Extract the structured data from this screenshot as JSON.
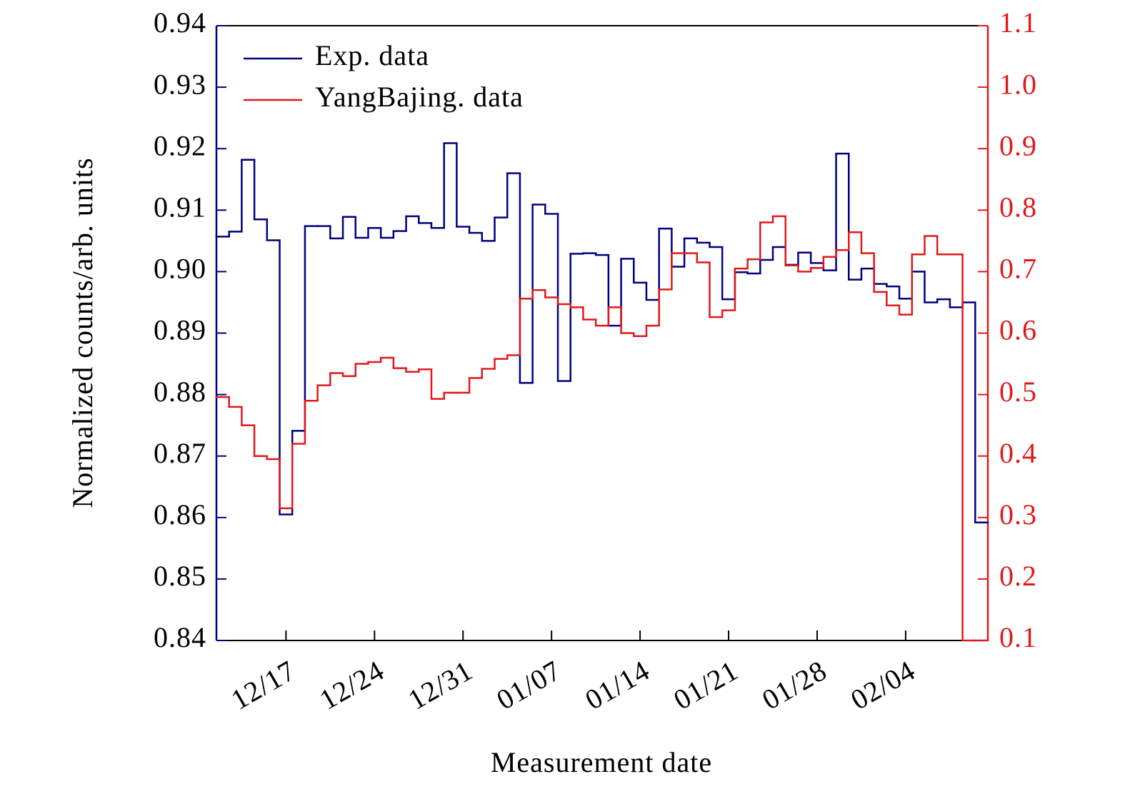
{
  "chart_data": {
    "type": "step",
    "xlabel": "Measurement date",
    "ylabel": "Normalized counts/arb. units",
    "categories": [
      null,
      null,
      null,
      null,
      null,
      "12/17",
      null,
      null,
      null,
      null,
      null,
      null,
      "12/24",
      null,
      null,
      null,
      null,
      null,
      null,
      "12/31",
      null,
      null,
      null,
      null,
      null,
      null,
      "01/07",
      null,
      null,
      null,
      null,
      null,
      null,
      "01/14",
      null,
      null,
      null,
      null,
      null,
      null,
      "01/21",
      null,
      null,
      null,
      null,
      null,
      null,
      "01/28",
      null,
      null,
      null,
      null,
      null,
      null,
      "02/04",
      null,
      null,
      null,
      null,
      null,
      null
    ],
    "ylim": [
      0.84,
      0.94
    ],
    "yticks": [
      0.84,
      0.85,
      0.86,
      0.87,
      0.88,
      0.89,
      {
        "value": 0.9,
        "label": "0.90"
      },
      0.91,
      0.92,
      0.93,
      0.94
    ],
    "y2lim": [
      0.1,
      1.1
    ],
    "y2ticks": [
      0.1,
      0.2,
      0.3,
      0.4,
      0.5,
      0.6,
      0.7,
      0.8,
      0.9,
      {
        "value": 1.0,
        "label": "1.0"
      },
      1.1
    ],
    "legend": "upper left",
    "series": [
      {
        "name": "Exp. data",
        "color": "#00007f",
        "values": [
          0.9057,
          0.9065,
          0.9182,
          0.9085,
          0.9051,
          0.8605,
          0.8741,
          0.9074,
          0.9074,
          0.9054,
          0.9089,
          0.9055,
          0.9071,
          0.9055,
          0.9066,
          0.909,
          0.9079,
          0.9071,
          0.9209,
          0.9073,
          0.9063,
          0.905,
          0.9088,
          0.916,
          0.8819,
          0.9109,
          0.9094,
          0.8822,
          0.9029,
          0.903,
          0.9027,
          0.8912,
          0.9021,
          0.8982,
          0.8954,
          0.907,
          0.9008,
          0.9054,
          0.9047,
          0.904,
          0.8955,
          0.8999,
          0.8997,
          0.9019,
          0.904,
          0.9011,
          0.9031,
          0.9014,
          0.9002,
          0.9192,
          0.8987,
          0.9005,
          0.898,
          0.8976,
          0.8956,
          0.9,
          0.895,
          0.8955,
          0.8942,
          0.895,
          0.8592
        ]
      },
      {
        "name": "YangBajing. data",
        "color": "#e0191b",
        "axis": "y2",
        "values": [
          0.496,
          0.48,
          0.45,
          0.4,
          0.395,
          0.315,
          0.42,
          0.49,
          0.515,
          0.535,
          0.53,
          0.55,
          0.553,
          0.56,
          0.543,
          0.537,
          0.541,
          0.493,
          0.503,
          0.503,
          0.527,
          0.542,
          0.558,
          0.564,
          0.656,
          0.67,
          0.658,
          0.647,
          0.642,
          0.622,
          0.612,
          0.642,
          0.6,
          0.595,
          0.612,
          0.671,
          0.73,
          0.73,
          0.715,
          0.626,
          0.637,
          0.705,
          0.72,
          0.78,
          0.79,
          0.71,
          0.7,
          0.706,
          0.724,
          0.735,
          0.764,
          0.73,
          0.667,
          0.645,
          0.63,
          0.728,
          0.758,
          0.728,
          0.728,
          0.1,
          0.1
        ]
      }
    ]
  }
}
